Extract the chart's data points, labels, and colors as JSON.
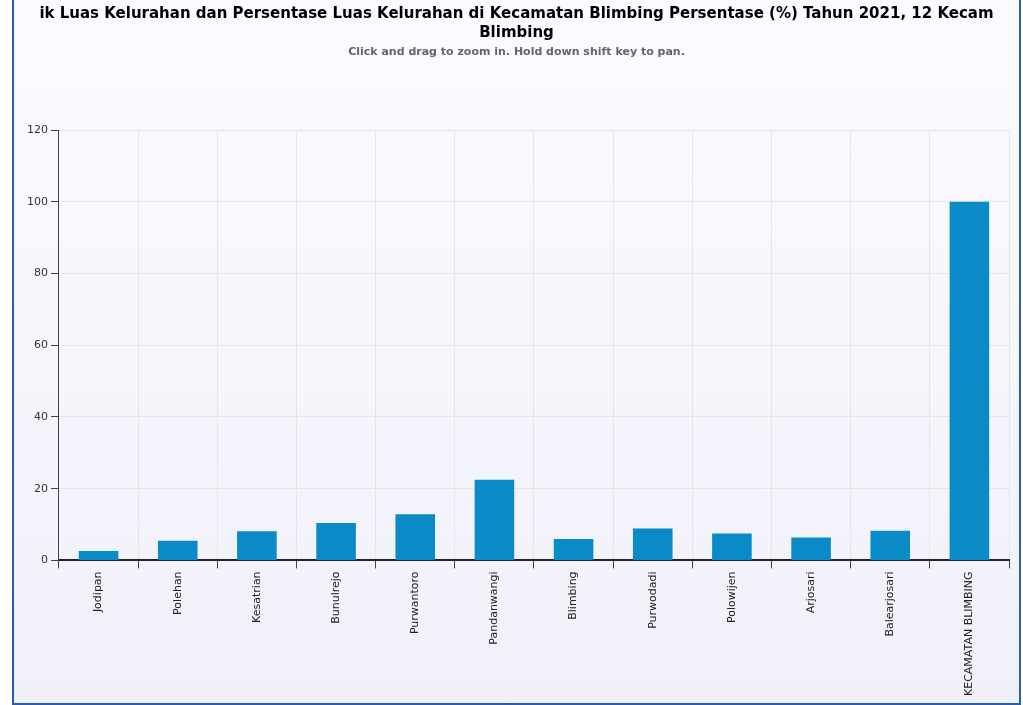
{
  "chart_data": {
    "type": "bar",
    "title": "ik Luas Kelurahan dan Persentase Luas Kelurahan di Kecamatan Blimbing Persentase (%) Tahun 2021, 12 Kecam Blimbing",
    "subtitle": "Click and drag to zoom in. Hold down shift key to pan.",
    "categories": [
      "Jodipan",
      "Polehan",
      "Kesatrian",
      "Bunulrejo",
      "Purwantoro",
      "Pandanwangi",
      "Blimbing",
      "Purwodadi",
      "Polowijen",
      "Arjosari",
      "Balearjosari",
      "KECAMATAN BLIMBING"
    ],
    "values": [
      2.6,
      5.5,
      8.1,
      10.4,
      12.9,
      22.5,
      6.0,
      8.9,
      7.5,
      6.4,
      8.3,
      100
    ],
    "color": "#0a8ac7",
    "ylim": [
      0,
      120
    ],
    "yticks": [
      0,
      20,
      40,
      60,
      80,
      100,
      120
    ],
    "grid": true,
    "legend": false
  }
}
